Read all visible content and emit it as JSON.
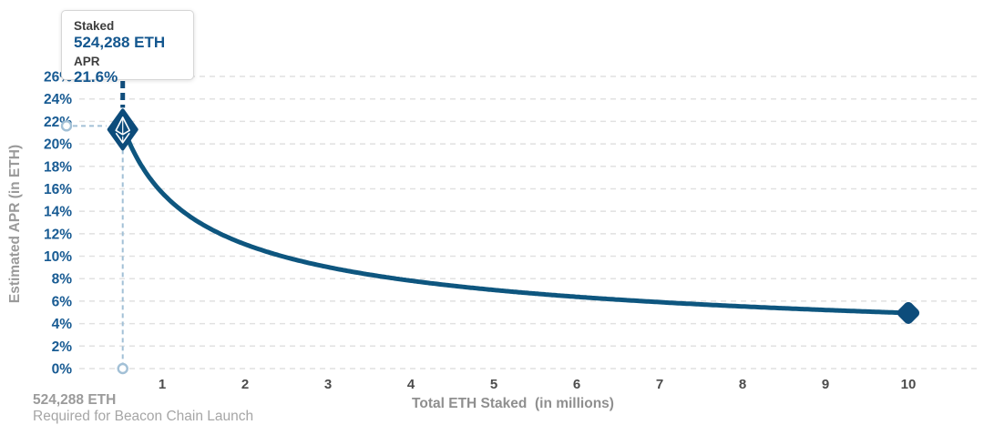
{
  "tooltip": {
    "staked_label": "Staked",
    "staked_value": "524,288 ETH",
    "apr_label": "APR",
    "apr_value": "21.6%"
  },
  "footnote": {
    "line1": "524,288 ETH",
    "line2": "Required for Beacon Chain Launch"
  },
  "colors": {
    "curve_blue": "#0e567f",
    "marker_blue": "#0d4c7b",
    "tick_label_blue": "#185b93",
    "value_blue": "#14578f",
    "gray_text": "#9b9b9b",
    "grid_gray": "#e1e1e1",
    "connector_light_blue": "#a2c0d6"
  },
  "chart_data": {
    "type": "line",
    "title": "",
    "xlabel": "Total ETH Staked  (in millions)",
    "ylabel": "Estimated APR (in ETH)",
    "xlim": [
      0,
      10.8
    ],
    "ylim": [
      0,
      26
    ],
    "xticks": [
      1,
      2,
      3,
      4,
      5,
      6,
      7,
      8,
      9,
      10
    ],
    "yticks": [
      "0%",
      "2%",
      "4%",
      "6%",
      "8%",
      "10%",
      "12%",
      "14%",
      "16%",
      "18%",
      "20%",
      "22%",
      "24%",
      "26%"
    ],
    "grid": "horizontal dashed lines only",
    "legend": "none",
    "series": [
      {
        "name": "Estimated APR",
        "color": "#0e567f",
        "curve_formula": "APR% = 21.6 * sqrt(0.524288 / staked_millions)",
        "k": 15.64,
        "points": [
          {
            "x": 0.524288,
            "y": 21.6
          },
          {
            "x": 0.75,
            "y": 18.1
          },
          {
            "x": 1,
            "y": 15.6
          },
          {
            "x": 1.5,
            "y": 12.8
          },
          {
            "x": 2,
            "y": 11.1
          },
          {
            "x": 2.5,
            "y": 9.9
          },
          {
            "x": 3,
            "y": 9.0
          },
          {
            "x": 4,
            "y": 7.8
          },
          {
            "x": 5,
            "y": 7.0
          },
          {
            "x": 6,
            "y": 6.4
          },
          {
            "x": 7,
            "y": 5.9
          },
          {
            "x": 8,
            "y": 5.5
          },
          {
            "x": 9,
            "y": 5.2
          },
          {
            "x": 10,
            "y": 4.9
          }
        ]
      }
    ],
    "annotations": {
      "highlight_point": {
        "x": 0.524288,
        "apr": 21.6,
        "marker": "ethereum-diamond"
      },
      "end_point": {
        "x": 10,
        "apr": 4.9,
        "marker": "rounded-diamond"
      },
      "reference_lines": "dashed drop lines from highlight point to 22% on y-axis and 0% on x-axis"
    }
  }
}
